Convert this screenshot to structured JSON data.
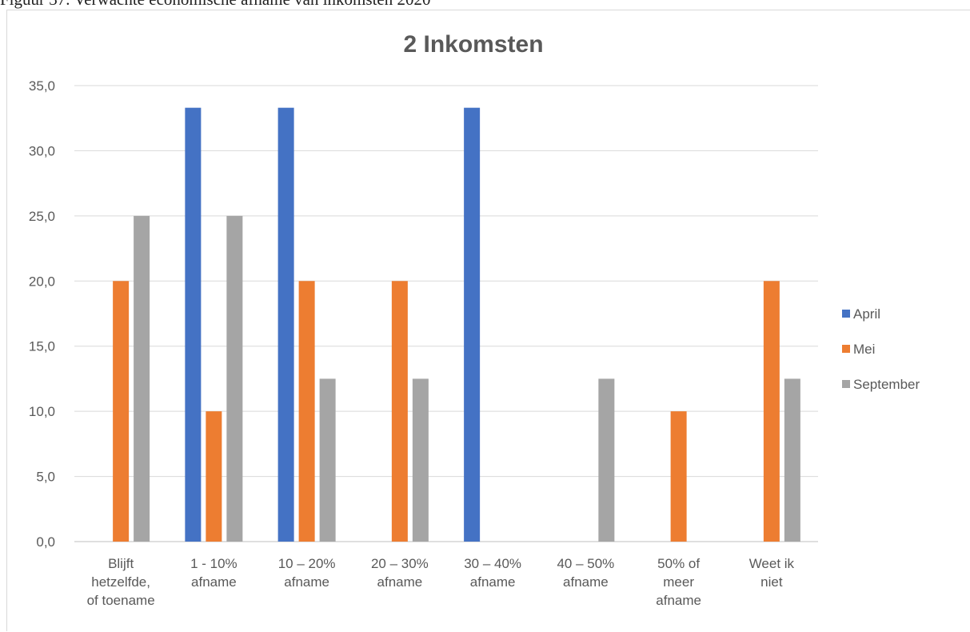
{
  "caption": "Figuur 37. Verwachte economische afname van inkomsten 2020",
  "chart_data": {
    "type": "bar",
    "title": "2 Inkomsten",
    "xlabel": "",
    "ylabel": "",
    "ylim": [
      0,
      35
    ],
    "yticks": [
      "0,0",
      "5,0",
      "10,0",
      "15,0",
      "20,0",
      "25,0",
      "30,0",
      "35,0"
    ],
    "grid": true,
    "legend_position": "right",
    "categories": [
      [
        "Blijft",
        "hetzelfde,",
        "of toename"
      ],
      [
        "1 - 10%",
        "afname"
      ],
      [
        "10 – 20%",
        "afname"
      ],
      [
        "20 – 30%",
        "afname"
      ],
      [
        "30 – 40%",
        "afname"
      ],
      [
        "40 – 50%",
        "afname"
      ],
      [
        "50% of",
        "meer",
        "afname"
      ],
      [
        "Weet ik",
        "niet"
      ]
    ],
    "series": [
      {
        "name": "April",
        "color": "#4472C4",
        "values": [
          0,
          33.3,
          33.3,
          0,
          33.3,
          0,
          0,
          0
        ]
      },
      {
        "name": "Mei",
        "color": "#ED7D31",
        "values": [
          20,
          10,
          20,
          20,
          0,
          0,
          10,
          20
        ]
      },
      {
        "name": "September",
        "color": "#A5A5A5",
        "values": [
          25,
          25,
          12.5,
          12.5,
          0,
          12.5,
          0,
          12.5
        ]
      }
    ]
  }
}
